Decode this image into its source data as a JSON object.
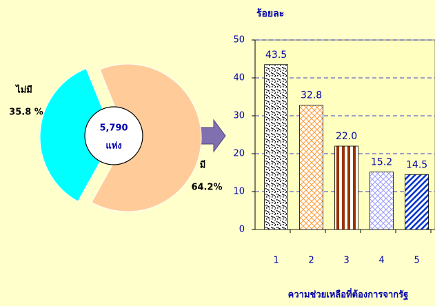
{
  "chart_data": [
    {
      "type": "pie",
      "categories": [
        "ไม่มี",
        "มี"
      ],
      "values": [
        35.8,
        64.2
      ],
      "value_labels": [
        "35.8 %",
        "64.2%"
      ],
      "colors": [
        "#00ffff",
        "#ffcc99"
      ],
      "center_text": [
        "5,790",
        "แห่ง"
      ]
    },
    {
      "type": "bar",
      "y_label": "ร้อยละ",
      "x_label": "ความช่วยเหลือที่ต้องการจากรัฐ",
      "categories": [
        "1",
        "2",
        "3",
        "4",
        "5"
      ],
      "values": [
        43.5,
        32.8,
        22.0,
        15.2,
        14.5
      ],
      "value_labels": [
        "43.5",
        "32.8",
        "22.0",
        "15.2",
        "14.5"
      ],
      "colors": [
        "#000000",
        "#ff9933",
        "#993300",
        "#9999ff",
        "#0033cc"
      ],
      "ylim": [
        0,
        50
      ],
      "yticks": [
        0,
        10,
        20,
        30,
        40,
        50
      ],
      "grid": true
    }
  ]
}
